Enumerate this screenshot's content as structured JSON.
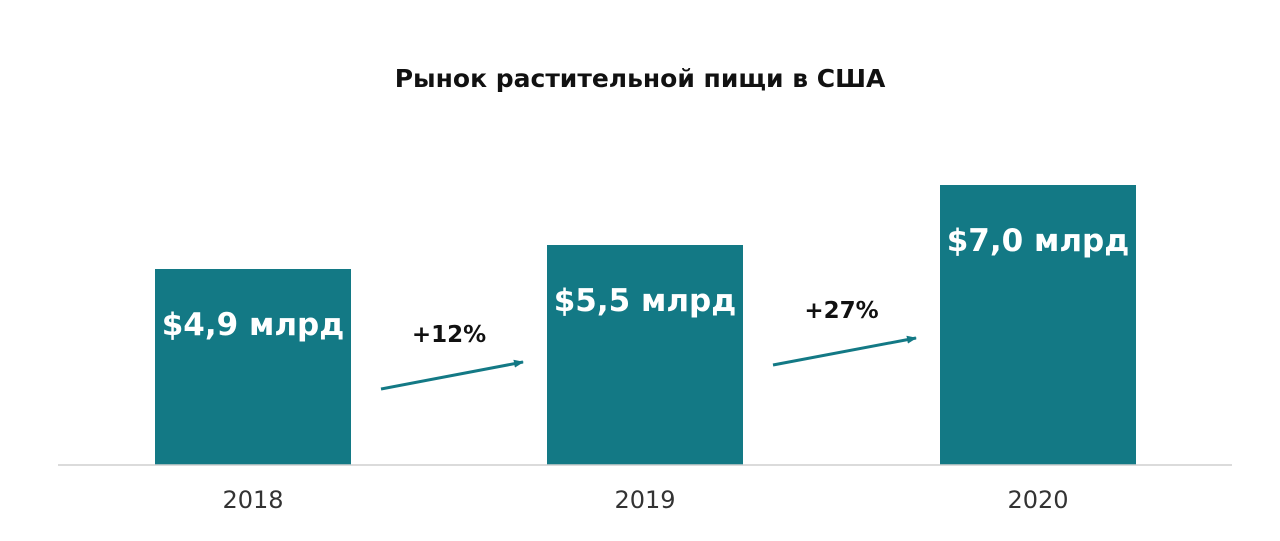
{
  "chart_data": {
    "type": "bar",
    "title": "Рынок растительной пищи в США",
    "categories": [
      "2018",
      "2019",
      "2020"
    ],
    "values": [
      4.9,
      5.5,
      7.0
    ],
    "data_labels": [
      "$4,9 млрд",
      "$5,5 млрд",
      "$7,0 млрд"
    ],
    "annotations": [
      {
        "from": "2018",
        "to": "2019",
        "text": "+12%"
      },
      {
        "from": "2019",
        "to": "2020",
        "text": "+27%"
      }
    ],
    "bar_color": "#137985",
    "arrow_color": "#137985",
    "grid": false,
    "ylim": [
      0,
      7.0
    ]
  }
}
